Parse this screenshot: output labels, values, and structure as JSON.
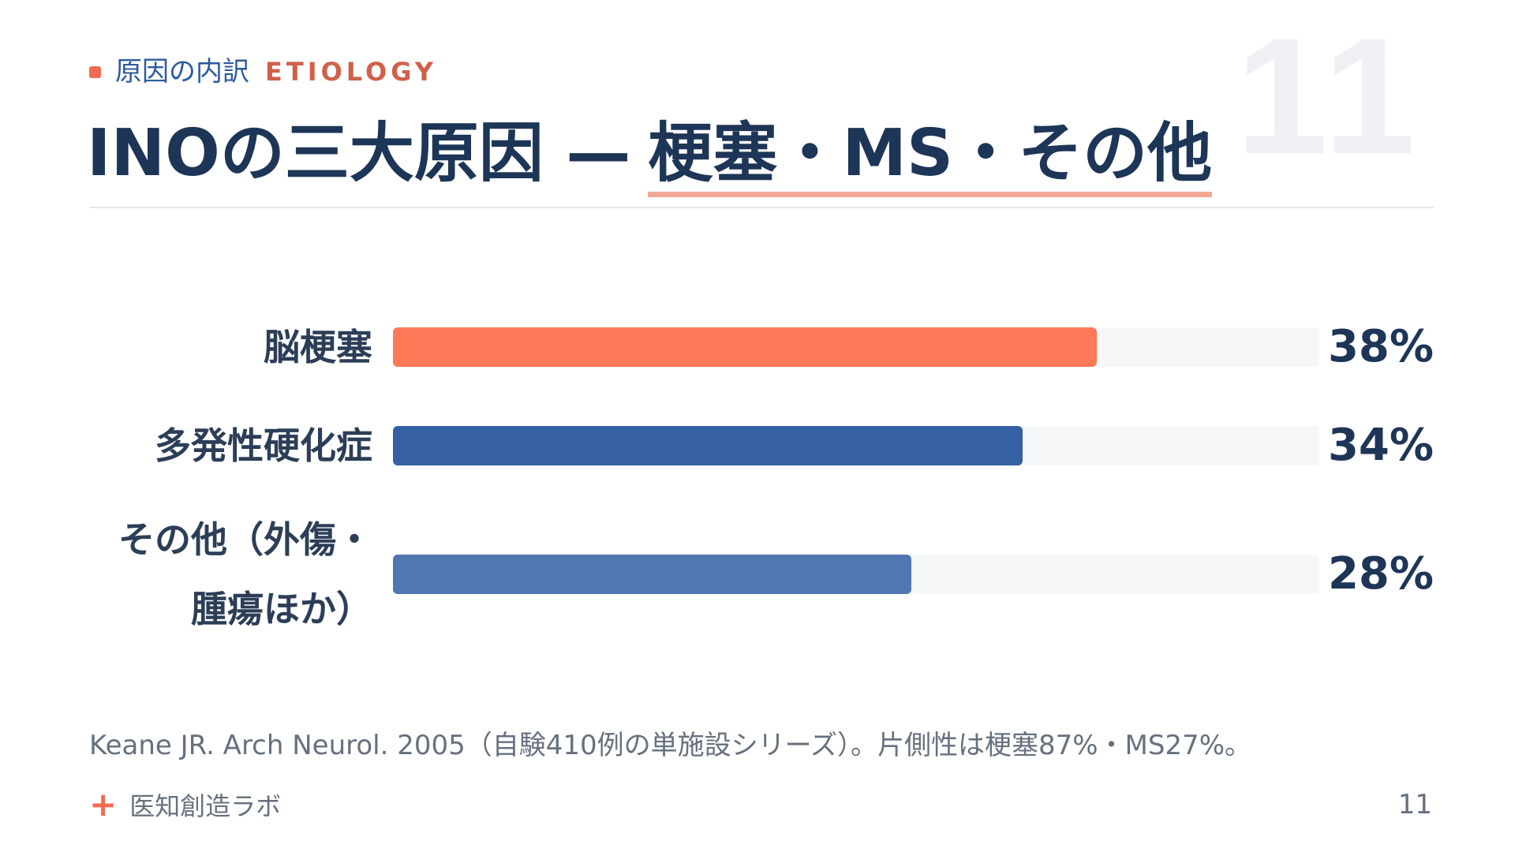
{
  "header": {
    "kicker_jp": "原因の内訳",
    "kicker_en": "ETIOLOGY",
    "slide_number_big": "11",
    "title_main": "INOの三大原因 —",
    "title_accent": "梗塞・MS・その他"
  },
  "chart_data": {
    "type": "bar",
    "orientation": "horizontal",
    "categories": [
      "脳梗塞",
      "多発性硬化症",
      "その他（外傷・腫瘍ほか）"
    ],
    "values": [
      38,
      34,
      28
    ],
    "value_labels": [
      "38%",
      "34%",
      "28%"
    ],
    "xlim": [
      0,
      50
    ],
    "colors": [
      "#ff7a59",
      "#3560a3",
      "#5176b2"
    ],
    "category_lines": [
      [
        "脳梗塞"
      ],
      [
        "多発性硬化症"
      ],
      [
        "その他（外傷・",
        "腫瘍ほか）"
      ]
    ]
  },
  "footer": {
    "source": "Keane JR. Arch Neurol. 2005（自験410例の単施設シリーズ）。片側性は梗塞87%・MS27%。",
    "brand": "医知創造ラボ",
    "brand_icon": "plus-icon",
    "page_number": "11"
  }
}
